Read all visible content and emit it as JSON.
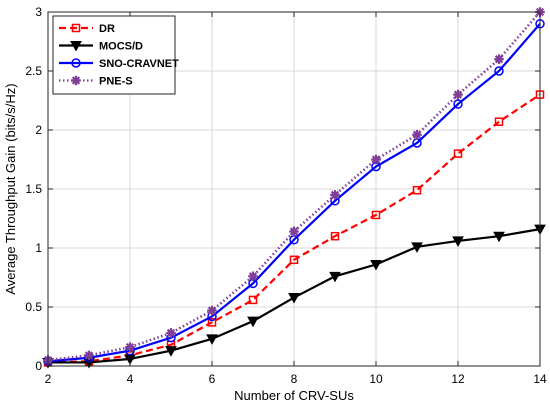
{
  "chart_data": {
    "type": "line",
    "xlabel": "Number of CRV-SUs",
    "ylabel": "Average Throughput Gain (bits/s/Hz)",
    "xlim": [
      2,
      14
    ],
    "ylim": [
      0,
      3
    ],
    "xticks": [
      2,
      4,
      6,
      8,
      10,
      12,
      14
    ],
    "yticks": [
      0,
      0.5,
      1,
      1.5,
      2,
      2.5,
      3
    ],
    "yticklabels": [
      "0",
      "0.5",
      "1",
      "1.5",
      "2",
      "2.5",
      "3"
    ],
    "grid": true,
    "legend_position": "top-left",
    "x": [
      2,
      3,
      4,
      5,
      6,
      7,
      8,
      9,
      10,
      11,
      12,
      13,
      14
    ],
    "series": [
      {
        "name": "DR",
        "color": "#ff0000",
        "line_style": "dashed",
        "marker": "square",
        "values": [
          0.03,
          0.04,
          0.09,
          0.18,
          0.37,
          0.56,
          0.9,
          1.1,
          1.28,
          1.49,
          1.8,
          2.07,
          2.3
        ]
      },
      {
        "name": "MOCS/D",
        "color": "#000000",
        "line_style": "solid",
        "marker": "triangle-down",
        "values": [
          0.03,
          0.03,
          0.06,
          0.13,
          0.23,
          0.38,
          0.58,
          0.76,
          0.86,
          1.01,
          1.06,
          1.1,
          1.16
        ]
      },
      {
        "name": "SNO-CRAVNET",
        "color": "#0000ff",
        "line_style": "solid",
        "marker": "circle",
        "values": [
          0.04,
          0.07,
          0.13,
          0.24,
          0.42,
          0.7,
          1.07,
          1.4,
          1.69,
          1.89,
          2.22,
          2.5,
          2.9
        ]
      },
      {
        "name": "PNE-S",
        "color": "#7f3f98",
        "line_style": "dotted",
        "marker": "star",
        "values": [
          0.05,
          0.09,
          0.16,
          0.28,
          0.47,
          0.76,
          1.14,
          1.45,
          1.75,
          1.96,
          2.3,
          2.6,
          3.0
        ]
      }
    ]
  }
}
